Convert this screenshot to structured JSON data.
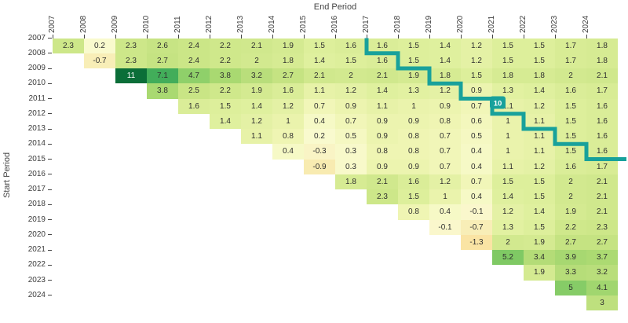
{
  "chart_data": {
    "type": "heatmap",
    "title": "",
    "xlabel": "End Period",
    "ylabel": "Start Period",
    "x_ticks": [
      "2007",
      "2008",
      "2009",
      "2010",
      "2011",
      "2012",
      "2013",
      "2014",
      "2015",
      "2016",
      "2017",
      "2018",
      "2019",
      "2020",
      "2021",
      "2022",
      "2023",
      "2024"
    ],
    "y_ticks": [
      "2007",
      "2008",
      "2009",
      "2010",
      "2011",
      "2012",
      "2013",
      "2014",
      "2015",
      "2016",
      "2017",
      "2018",
      "2019",
      "2020",
      "2021",
      "2022",
      "2023",
      "2024"
    ],
    "rows": [
      {
        "start": 2007,
        "values": [
          2.3,
          0.2,
          2.3,
          2.6,
          2.4,
          2.2,
          2.1,
          1.9,
          1.5,
          1.6,
          1.6,
          1.5,
          1.4,
          1.2,
          1.5,
          1.5,
          1.7,
          1.8
        ]
      },
      {
        "start": 2008,
        "values": [
          -0.7,
          2.3,
          2.7,
          2.4,
          2.2,
          2,
          1.8,
          1.4,
          1.5,
          1.6,
          1.5,
          1.4,
          1.2,
          1.5,
          1.5,
          1.7,
          1.8
        ]
      },
      {
        "start": 2009,
        "values": [
          11,
          7.1,
          4.7,
          3.8,
          3.2,
          2.7,
          2.1,
          2,
          2.1,
          1.9,
          1.8,
          1.5,
          1.8,
          1.8,
          2,
          2.1
        ]
      },
      {
        "start": 2010,
        "values": [
          3.8,
          2.5,
          2.2,
          1.9,
          1.6,
          1.1,
          1.2,
          1.4,
          1.3,
          1.2,
          0.9,
          1.3,
          1.4,
          1.6,
          1.7
        ]
      },
      {
        "start": 2011,
        "values": [
          1.6,
          1.5,
          1.4,
          1.2,
          0.7,
          0.9,
          1.1,
          1,
          0.9,
          0.7,
          1.1,
          1.2,
          1.5,
          1.6
        ]
      },
      {
        "start": 2012,
        "values": [
          1.4,
          1.2,
          1,
          0.4,
          0.7,
          0.9,
          0.9,
          0.8,
          0.6,
          1,
          1.1,
          1.5,
          1.6
        ]
      },
      {
        "start": 2013,
        "values": [
          1.1,
          0.8,
          0.2,
          0.5,
          0.9,
          0.8,
          0.7,
          0.5,
          1,
          1.1,
          1.5,
          1.6
        ]
      },
      {
        "start": 2014,
        "values": [
          0.4,
          -0.3,
          0.3,
          0.8,
          0.8,
          0.7,
          0.4,
          1,
          1.1,
          1.5,
          1.6
        ]
      },
      {
        "start": 2015,
        "values": [
          -0.9,
          0.3,
          0.9,
          0.9,
          0.7,
          0.4,
          1.1,
          1.2,
          1.6,
          1.7
        ]
      },
      {
        "start": 2016,
        "values": [
          1.8,
          2.1,
          1.6,
          1.2,
          0.7,
          1.5,
          1.5,
          2,
          2.1
        ]
      },
      {
        "start": 2017,
        "values": [
          2.3,
          1.5,
          1,
          0.4,
          1.4,
          1.5,
          2,
          2.1
        ]
      },
      {
        "start": 2018,
        "values": [
          0.8,
          0.4,
          -0.1,
          1.2,
          1.4,
          1.9,
          2.1
        ]
      },
      {
        "start": 2019,
        "values": [
          -0.1,
          -0.7,
          1.3,
          1.5,
          2.2,
          2.3
        ]
      },
      {
        "start": 2020,
        "values": [
          -1.3,
          2,
          1.9,
          2.7,
          2.7
        ]
      },
      {
        "start": 2021,
        "values": [
          5.2,
          3.4,
          3.9,
          3.7
        ]
      },
      {
        "start": 2022,
        "values": [
          1.9,
          3.3,
          3.2
        ]
      },
      {
        "start": 2023,
        "values": [
          5,
          4.1
        ]
      },
      {
        "start": 2024,
        "values": [
          3
        ]
      }
    ],
    "line_annotation": {
      "label": "10",
      "color": "#18a19b"
    },
    "colorscale": [
      [
        -1.5,
        "#fbe19d"
      ],
      [
        -0.8,
        "#f8edb4"
      ],
      [
        -0.3,
        "#f9f4c5"
      ],
      [
        0.1,
        "#fafad2"
      ],
      [
        0.5,
        "#f5f8c2"
      ],
      [
        0.8,
        "#eff5b3"
      ],
      [
        1.1,
        "#e7f2a8"
      ],
      [
        1.4,
        "#dff09e"
      ],
      [
        1.7,
        "#d8ec95"
      ],
      [
        2.0,
        "#d2e98f"
      ],
      [
        2.4,
        "#cbe687"
      ],
      [
        2.8,
        "#c3e280"
      ],
      [
        3.2,
        "#b9de7b"
      ],
      [
        3.7,
        "#acda72"
      ],
      [
        4.3,
        "#9cd46e"
      ],
      [
        4.9,
        "#89ce68"
      ],
      [
        5.5,
        "#75c45f"
      ],
      [
        6.3,
        "#58b75c"
      ],
      [
        7.2,
        "#3fac5a"
      ],
      [
        8.4,
        "#2b9950"
      ],
      [
        9.6,
        "#178344"
      ],
      [
        11,
        "#0b6e38"
      ]
    ],
    "colors": {
      "background": "#ffffff",
      "tick_text": "#3c3c3c",
      "value_text": "#2f2f2f",
      "value_text_on_dark": "#ffffff"
    }
  }
}
